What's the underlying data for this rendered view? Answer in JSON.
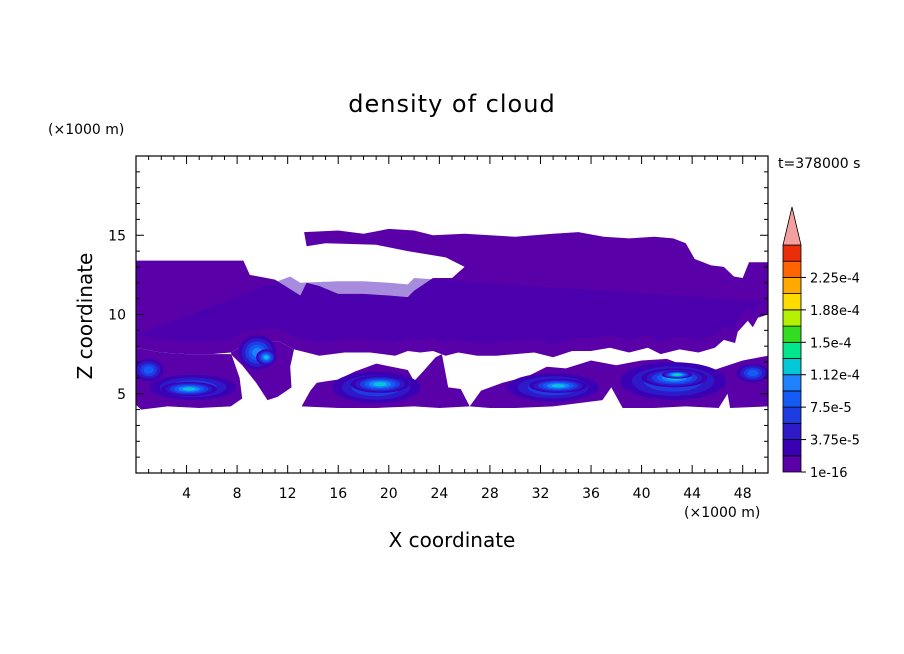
{
  "chart_data": {
    "type": "heatmap",
    "title": "density of cloud",
    "time_label": "t=378000 s",
    "xlabel": "X coordinate",
    "ylabel": "Z coordinate",
    "x_unit_label": "(×1000 m)",
    "y_unit_label": "(×1000 m)",
    "xlim": [
      0,
      50
    ],
    "ylim": [
      0,
      20
    ],
    "x_ticks": [
      4,
      8,
      12,
      16,
      20,
      24,
      28,
      32,
      36,
      40,
      44,
      48
    ],
    "y_ticks": [
      5,
      10,
      15
    ],
    "colorbar": {
      "labels": [
        "2.25e-4",
        "1.88e-4",
        "1.5e-4",
        "1.12e-4",
        "7.5e-5",
        "3.75e-5",
        "1e-16"
      ],
      "levels": [
        1e-16,
        1.875e-05,
        3.75e-05,
        5.625e-05,
        7.5e-05,
        9.375e-05,
        0.0001125,
        0.00013125,
        0.00015,
        0.00016875,
        0.0001875,
        0.00020625,
        0.000225,
        0.00024375
      ],
      "colors": [
        "#5a00a8",
        "#3c00b4",
        "#2d19c8",
        "#1e3ce1",
        "#145af5",
        "#1e82ff",
        "#00c8d7",
        "#00e68c",
        "#32dc1e",
        "#b4f000",
        "#ffdc00",
        "#ffaa00",
        "#ff6400",
        "#eb2d0a",
        "#f5a0a0"
      ]
    },
    "regions": {
      "upper_cloud": [
        [
          0,
          13.4
        ],
        [
          8.5,
          13.4
        ],
        [
          9,
          12.5
        ],
        [
          11,
          12.2
        ],
        [
          12.2,
          11.6
        ],
        [
          13,
          11.2
        ],
        [
          13.5,
          12.0
        ],
        [
          14.5,
          11.8
        ],
        [
          16,
          11.3
        ],
        [
          18,
          11.3
        ],
        [
          20,
          11.2
        ],
        [
          21.5,
          11.1
        ],
        [
          22,
          11.5
        ],
        [
          23.5,
          12.3
        ],
        [
          25,
          12.3
        ],
        [
          26,
          13.0
        ],
        [
          24.5,
          13.6
        ],
        [
          21.5,
          14.0
        ],
        [
          19,
          14.4
        ],
        [
          15,
          14.5
        ],
        [
          13.5,
          14.3
        ],
        [
          13.3,
          15.2
        ],
        [
          16,
          15.3
        ],
        [
          18,
          15.1
        ],
        [
          20,
          15.4
        ],
        [
          22,
          15.3
        ],
        [
          23.5,
          15.0
        ],
        [
          26,
          15.1
        ],
        [
          28,
          15.0
        ],
        [
          30,
          14.9
        ],
        [
          33,
          15.1
        ],
        [
          35,
          15.2
        ],
        [
          37,
          14.9
        ],
        [
          39,
          14.8
        ],
        [
          41,
          14.9
        ],
        [
          42.5,
          14.8
        ],
        [
          43.5,
          14.5
        ],
        [
          44.2,
          13.5
        ],
        [
          45.5,
          13.1
        ],
        [
          46.5,
          13.0
        ],
        [
          47.3,
          12.4
        ],
        [
          48,
          12.3
        ],
        [
          48.5,
          13.3
        ],
        [
          50,
          13.3
        ],
        [
          50,
          10.0
        ],
        [
          49.2,
          9.8
        ],
        [
          48.8,
          9.2
        ],
        [
          48.4,
          9.6
        ],
        [
          47.6,
          8.9
        ],
        [
          47.4,
          8.2
        ],
        [
          46.5,
          8.4
        ],
        [
          45.8,
          7.9
        ],
        [
          44.5,
          7.6
        ],
        [
          43,
          7.8
        ],
        [
          41.5,
          7.5
        ],
        [
          40.5,
          7.9
        ],
        [
          39,
          7.6
        ],
        [
          37.5,
          7.9
        ],
        [
          36,
          7.7
        ],
        [
          34.5,
          7.7
        ],
        [
          33,
          7.3
        ],
        [
          31.5,
          7.6
        ],
        [
          30,
          7.5
        ],
        [
          28.5,
          7.4
        ],
        [
          27,
          7.4
        ],
        [
          25.5,
          7.6
        ],
        [
          24.5,
          7.4
        ],
        [
          23.5,
          7.7
        ],
        [
          22.5,
          7.6
        ],
        [
          21.5,
          7.7
        ],
        [
          20.5,
          7.4
        ],
        [
          18.5,
          7.6
        ],
        [
          16.5,
          7.6
        ],
        [
          14.5,
          7.4
        ],
        [
          13.5,
          7.6
        ],
        [
          12.5,
          7.8
        ],
        [
          11.3,
          8.3
        ],
        [
          10,
          8.3
        ],
        [
          8.6,
          8.1
        ],
        [
          7.5,
          7.6
        ],
        [
          6,
          7.5
        ],
        [
          4,
          7.5
        ],
        [
          2,
          7.6
        ],
        [
          0,
          7.9
        ]
      ],
      "left_cluster": [
        [
          0,
          7.9
        ],
        [
          2,
          7.6
        ],
        [
          4,
          7.5
        ],
        [
          6,
          7.5
        ],
        [
          7.5,
          7.5
        ],
        [
          8.4,
          6.8
        ],
        [
          9.5,
          5.7
        ],
        [
          10.4,
          4.6
        ],
        [
          11.2,
          4.8
        ],
        [
          12.3,
          5.4
        ],
        [
          12.2,
          6.7
        ],
        [
          12.5,
          7.8
        ],
        [
          11.3,
          8.3
        ],
        [
          10,
          8.3
        ],
        [
          8.6,
          8.1
        ],
        [
          7.5,
          7.6
        ],
        [
          8.2,
          6.0
        ],
        [
          8.4,
          4.7
        ],
        [
          7.5,
          4.2
        ],
        [
          5,
          4.1
        ],
        [
          2.5,
          4.2
        ],
        [
          0.4,
          4.0
        ],
        [
          0,
          4.3
        ]
      ],
      "mid_cluster": [
        [
          13.1,
          4.2
        ],
        [
          13.8,
          5.2
        ],
        [
          14.3,
          5.7
        ],
        [
          16,
          5.9
        ],
        [
          17.3,
          6.4
        ],
        [
          19,
          6.9
        ],
        [
          21.5,
          6.5
        ],
        [
          22,
          5.8
        ],
        [
          22.7,
          6.4
        ],
        [
          23.7,
          7.3
        ],
        [
          24.2,
          7.5
        ],
        [
          24.7,
          5.4
        ],
        [
          25.7,
          5.3
        ],
        [
          26.4,
          4.2
        ],
        [
          24,
          4.1
        ],
        [
          22,
          4.2
        ],
        [
          19,
          4.1
        ],
        [
          16,
          4.1
        ]
      ],
      "right_cluster": [
        [
          26.4,
          4.2
        ],
        [
          27.3,
          5.2
        ],
        [
          29,
          5.7
        ],
        [
          31,
          6.1
        ],
        [
          32.5,
          6.7
        ],
        [
          34,
          6.6
        ],
        [
          36,
          7.1
        ],
        [
          38,
          6.8
        ],
        [
          40,
          7.1
        ],
        [
          42,
          7.2
        ],
        [
          44,
          6.6
        ],
        [
          45,
          6.3
        ],
        [
          46.5,
          6.7
        ],
        [
          48,
          7.1
        ],
        [
          50,
          7.4
        ],
        [
          50,
          4.2
        ],
        [
          47,
          4.1
        ],
        [
          46.8,
          5.0
        ],
        [
          46.1,
          4.1
        ],
        [
          43.5,
          4.2
        ],
        [
          41,
          4.1
        ],
        [
          38.5,
          4.1
        ],
        [
          37.6,
          5.4
        ],
        [
          36.9,
          4.6
        ],
        [
          33,
          4.2
        ],
        [
          30,
          4.1
        ],
        [
          28,
          4.1
        ]
      ]
    },
    "cores": [
      {
        "x": 4.5,
        "z": 5.4,
        "rx": 3.4,
        "rz": 0.8,
        "level": 4
      },
      {
        "x": 4.2,
        "z": 5.3,
        "rx": 2.2,
        "rz": 0.45,
        "level": 6
      },
      {
        "x": 1.0,
        "z": 6.5,
        "rx": 1.2,
        "rz": 0.7,
        "level": 4
      },
      {
        "x": 9.6,
        "z": 7.6,
        "rx": 1.5,
        "rz": 1.1,
        "level": 5
      },
      {
        "x": 10.3,
        "z": 7.3,
        "rx": 0.8,
        "rz": 0.5,
        "level": 6
      },
      {
        "x": 19.0,
        "z": 5.4,
        "rx": 3.5,
        "rz": 1.0,
        "level": 4
      },
      {
        "x": 19.3,
        "z": 5.6,
        "rx": 2.3,
        "rz": 0.55,
        "level": 6
      },
      {
        "x": 33.0,
        "z": 5.4,
        "rx": 3.6,
        "rz": 0.9,
        "level": 4
      },
      {
        "x": 33.4,
        "z": 5.5,
        "rx": 2.3,
        "rz": 0.45,
        "level": 6
      },
      {
        "x": 42.5,
        "z": 5.8,
        "rx": 4.2,
        "rz": 1.2,
        "level": 4
      },
      {
        "x": 42.6,
        "z": 6.0,
        "rx": 2.6,
        "rz": 0.6,
        "level": 6
      },
      {
        "x": 42.8,
        "z": 6.2,
        "rx": 1.2,
        "rz": 0.25,
        "level": 7
      },
      {
        "x": 48.8,
        "z": 6.3,
        "rx": 1.3,
        "rz": 0.6,
        "level": 4
      }
    ]
  }
}
